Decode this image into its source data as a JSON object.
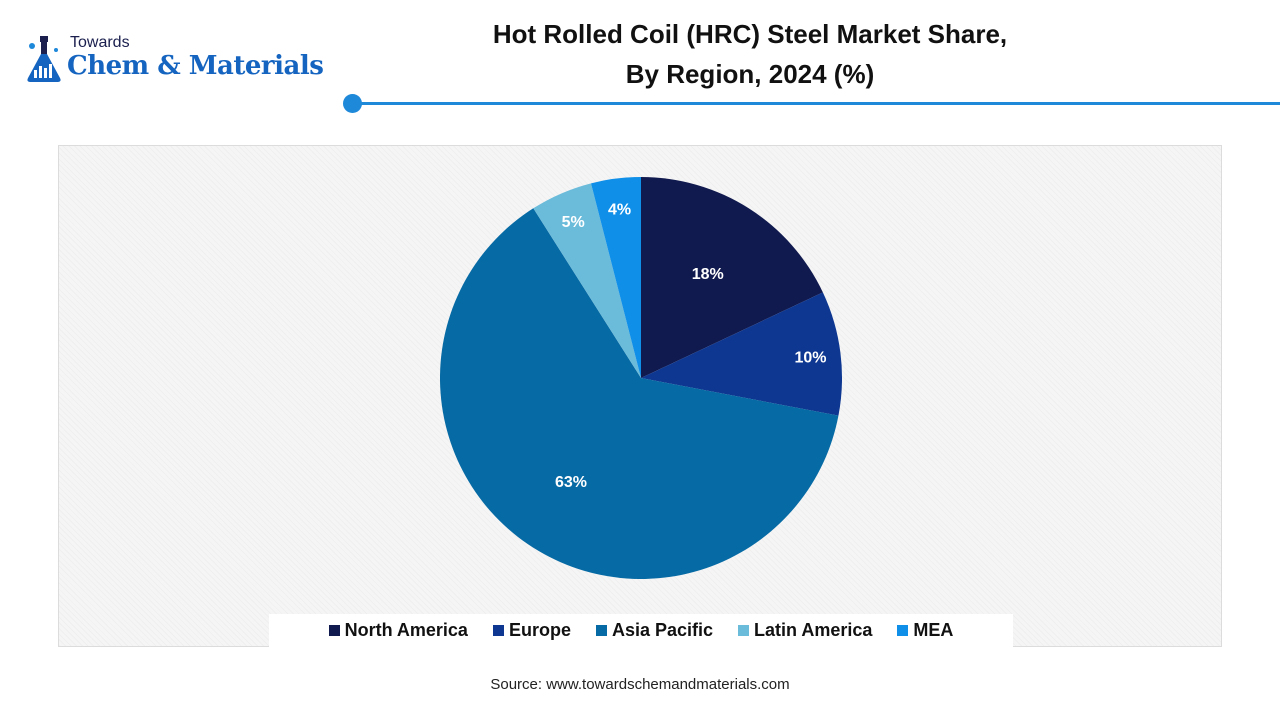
{
  "logo": {
    "top_text": "Towards",
    "main_text": "Chem & Materials"
  },
  "header": {
    "title_line1": "Hot Rolled Coil (HRC) Steel Market Share,",
    "title_line2": "By Region, 2024 (%)"
  },
  "colors": {
    "accent": "#1e88d9",
    "north_america": "#111a4f",
    "europe": "#0d3791",
    "asia_pacific": "#066aa4",
    "latin_america": "#6bbbdb",
    "mea": "#0f8fe8"
  },
  "chart_data": {
    "type": "pie",
    "title": "Hot Rolled Coil (HRC) Steel Market Share, By Region, 2024 (%)",
    "categories": [
      "North America",
      "Europe",
      "Asia Pacific",
      "Latin America",
      "MEA"
    ],
    "values": [
      18,
      10,
      63,
      5,
      4
    ],
    "labels": [
      "18%",
      "10%",
      "63%",
      "5%",
      "4%"
    ],
    "colors": [
      "#111a4f",
      "#0d3791",
      "#066aa4",
      "#6bbbdb",
      "#0f8fe8"
    ],
    "legend_position": "bottom",
    "start_angle": "top",
    "direction": "clockwise"
  },
  "source": "Source: www.towardschemandmaterials.com"
}
